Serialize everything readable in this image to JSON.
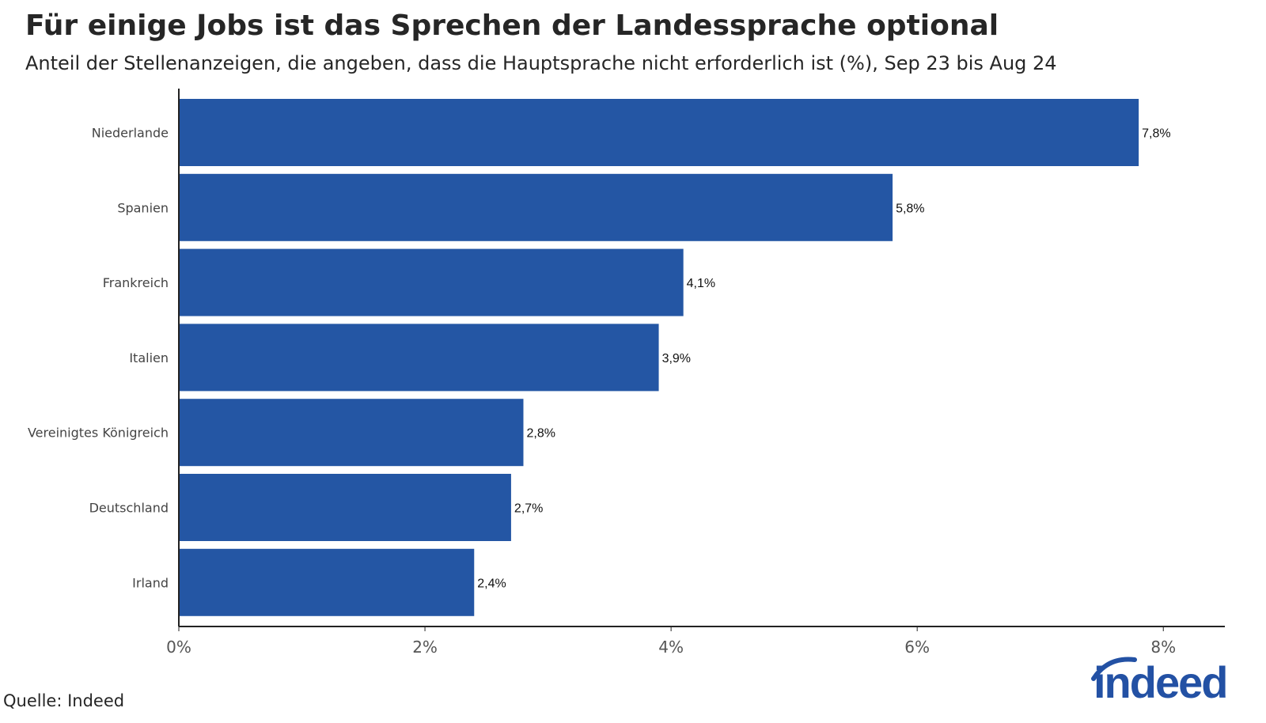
{
  "header": {
    "title": "Für einige Jobs ist das Sprechen der Landessprache optional",
    "subtitle": "Anteil der Stellenanzeigen, die angeben, dass die Hauptsprache nicht erforderlich ist (%), Sep 23 bis Aug 24"
  },
  "footer": {
    "source": "Quelle: Indeed",
    "logo_text": "indeed"
  },
  "colors": {
    "bar": "#2456a4",
    "axis": "#222222",
    "text": "#262626",
    "brand": "#2351a4"
  },
  "chart_data": {
    "type": "bar",
    "orientation": "horizontal",
    "title": "Für einige Jobs ist das Sprechen der Landessprache optional",
    "subtitle": "Anteil der Stellenanzeigen, die angeben, dass die Hauptsprache nicht erforderlich ist (%), Sep 23 bis Aug 24",
    "categories": [
      "Niederlande",
      "Spanien",
      "Frankreich",
      "Italien",
      "Vereinigtes Königreich",
      "Deutschland",
      "Irland"
    ],
    "values": [
      7.8,
      5.8,
      4.1,
      3.9,
      2.8,
      2.7,
      2.4
    ],
    "value_labels": [
      "7,8%",
      "5,8%",
      "4,1%",
      "3,9%",
      "2,8%",
      "2,7%",
      "2,4%"
    ],
    "xlim": [
      0,
      8.5
    ],
    "xticks": [
      0,
      2,
      4,
      6,
      8
    ],
    "xtick_labels": [
      "0%",
      "2%",
      "4%",
      "6%",
      "8%"
    ],
    "xlabel": "",
    "ylabel": "",
    "grid": false,
    "legend": "none"
  }
}
